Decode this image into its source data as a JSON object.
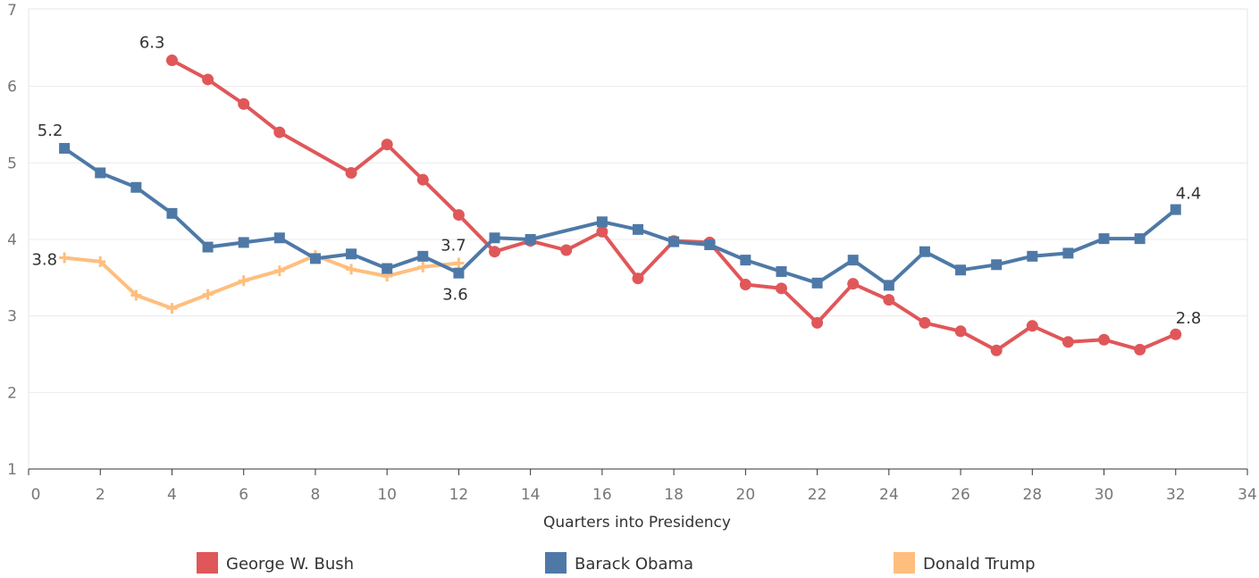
{
  "chart_data": {
    "type": "line",
    "xlabel": "Quarters into Presidency",
    "ylabel": "",
    "xlim": [
      0,
      34
    ],
    "ylim": [
      1,
      7
    ],
    "x_ticks": [
      0,
      2,
      4,
      6,
      8,
      10,
      12,
      14,
      16,
      18,
      20,
      22,
      24,
      26,
      28,
      30,
      32,
      34
    ],
    "y_ticks": [
      1,
      2,
      3,
      4,
      5,
      6,
      7
    ],
    "grid": "horizontal",
    "legend_position": "bottom",
    "series": [
      {
        "name": "George W. Bush",
        "color": "#e05759",
        "marker": "circle",
        "x": [
          4,
          5,
          6,
          7,
          9,
          10,
          11,
          12,
          13,
          14,
          15,
          16,
          17,
          18,
          19,
          20,
          21,
          22,
          23,
          24,
          25,
          26,
          27,
          28,
          29,
          30,
          31,
          32
        ],
        "values": [
          6.34,
          6.09,
          5.77,
          5.4,
          4.87,
          5.24,
          4.78,
          4.32,
          3.84,
          3.98,
          3.86,
          4.1,
          3.49,
          3.98,
          3.96,
          3.41,
          3.36,
          2.91,
          3.42,
          3.21,
          2.91,
          2.8,
          2.55,
          2.87,
          2.66,
          2.69,
          2.56,
          2.76
        ],
        "point_labels": {
          "4": "6.3",
          "32": "2.8"
        }
      },
      {
        "name": "Barack Obama",
        "color": "#4e79a7",
        "marker": "square",
        "x": [
          1,
          2,
          3,
          4,
          5,
          6,
          7,
          8,
          9,
          10,
          11,
          12,
          13,
          14,
          16,
          17,
          18,
          19,
          20,
          21,
          22,
          23,
          24,
          25,
          26,
          27,
          28,
          29,
          30,
          31,
          32
        ],
        "values": [
          5.19,
          4.87,
          4.68,
          4.34,
          3.9,
          3.96,
          4.02,
          3.75,
          3.81,
          3.62,
          3.78,
          3.56,
          4.02,
          4.0,
          4.23,
          4.13,
          3.97,
          3.93,
          3.73,
          3.58,
          3.43,
          3.73,
          3.4,
          3.84,
          3.6,
          3.67,
          3.78,
          3.82,
          4.01,
          4.01,
          4.39
        ],
        "point_labels": {
          "1": "5.2",
          "12": "3.6",
          "32": "4.4"
        }
      },
      {
        "name": "Donald Trump",
        "color": "#ffbe7d",
        "marker": "plus",
        "x": [
          1,
          2,
          3,
          4,
          5,
          6,
          7,
          8,
          9,
          10,
          11,
          12
        ],
        "values": [
          3.76,
          3.71,
          3.27,
          3.1,
          3.28,
          3.46,
          3.59,
          3.79,
          3.61,
          3.52,
          3.64,
          3.69
        ],
        "point_labels": {
          "1": "3.8",
          "12": "3.7"
        }
      }
    ]
  }
}
